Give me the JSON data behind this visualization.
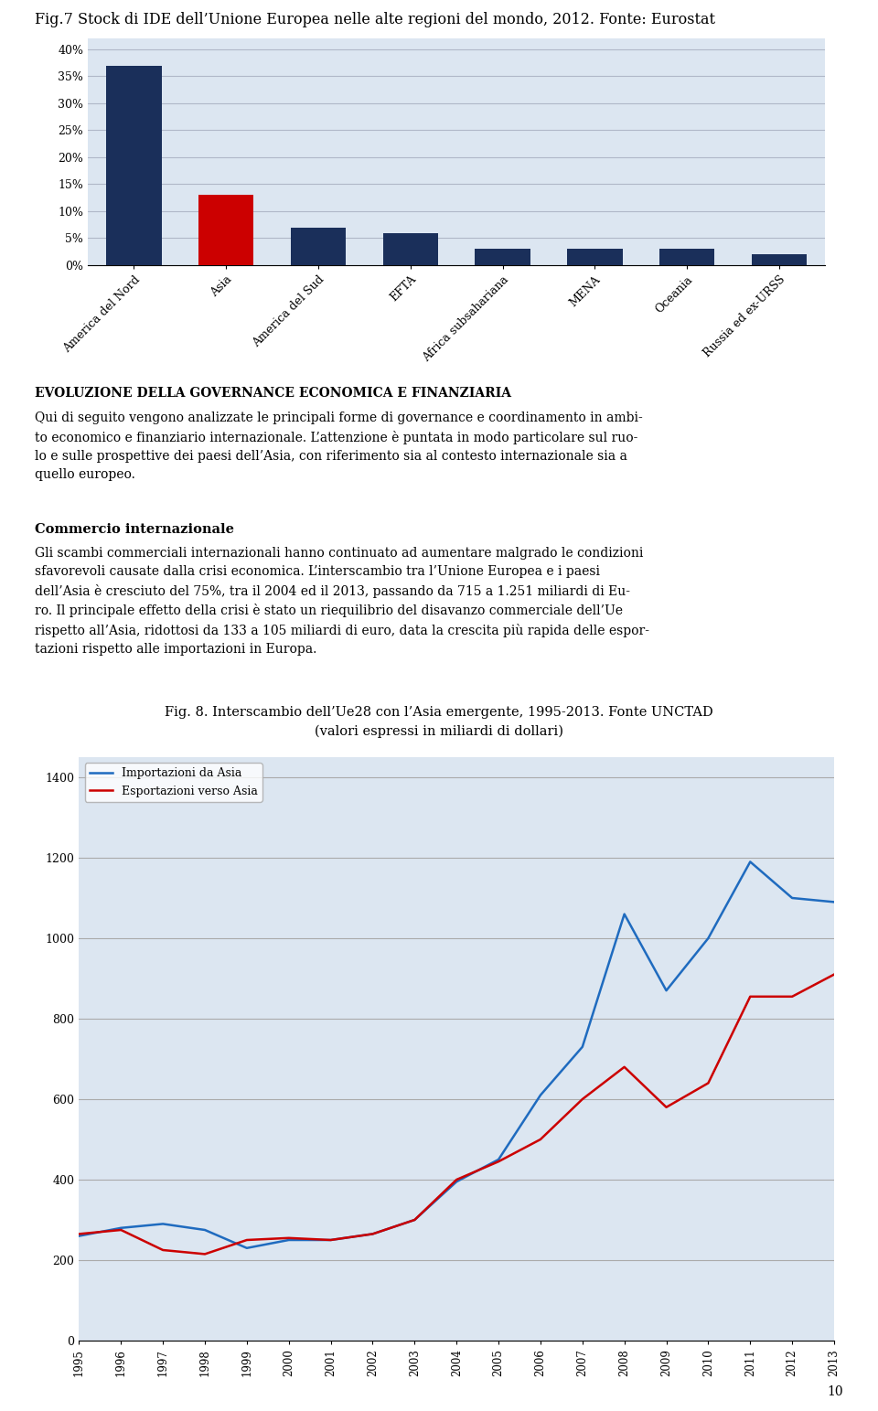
{
  "page_title": "Fig.7 Stock di IDE dell’Unione Europea nelle alte regioni del mondo, 2012. Fonte: Eurostat",
  "bar_categories": [
    "America del Nord",
    "Asia",
    "America del Sud",
    "EFTA",
    "Africa subsahariana",
    "MENA",
    "Oceania",
    "Russia ed ex-URSS"
  ],
  "bar_values": [
    0.37,
    0.13,
    0.07,
    0.06,
    0.03,
    0.03,
    0.03,
    0.02
  ],
  "bar_colors": [
    "#1a2f5a",
    "#cc0000",
    "#1a2f5a",
    "#1a2f5a",
    "#1a2f5a",
    "#1a2f5a",
    "#1a2f5a",
    "#1a2f5a"
  ],
  "bar_yticks": [
    0.0,
    0.05,
    0.1,
    0.15,
    0.2,
    0.25,
    0.3,
    0.35,
    0.4
  ],
  "bar_ytick_labels": [
    "0%",
    "5%",
    "10%",
    "15%",
    "20%",
    "25%",
    "30%",
    "35%",
    "40%"
  ],
  "bar_bg_color": "#dce6f1",
  "bar_grid_color": "#b0b8c8",
  "section_title": "Evoluzione della Governance Economica e Finanziaria",
  "para1": "Qui di seguito vengono analizzate le principali forme di governance e coordinamento in ambi-\nto economico e finanziario internazionale. L’attenzione è puntata in modo particolare sul ruo-\nlo e sulle prospettive dei paesi dell’Asia, con riferimento sia al contesto internazionale sia a\nquello europeo.",
  "subsection_title": "Commercio internazionale",
  "para2": "Gli scambi commerciali internazionali hanno continuato ad aumentare malgrado le condizioni\nsfavorevoli causate dalla crisi economica. L’interscambio tra l’Unione Europea e i paesi\ndell’Asia è cresciuto del 75%, tra il 2004 ed il 2013, passando da 715 a 1.251 miliardi di Eu-\nro. Il principale effetto della crisi è stato un riequilibrio del disavanzo commerciale dell’Ue\nrispetto all’Asia, ridottosi da 133 a 105 miliardi di euro, data la crescita più rapida delle espor-\ntazioni rispetto alle importazioni in Europa.",
  "fig8_title": "Fig. 8. Interscambio dell’Ue28 con l’Asia emergente, 1995-2013. Fonte UNCTAD\n(valori espressi in miliardi di dollari)",
  "line_years": [
    1995,
    1996,
    1997,
    1998,
    1999,
    2000,
    2001,
    2002,
    2003,
    2004,
    2005,
    2006,
    2007,
    2008,
    2009,
    2010,
    2011,
    2012,
    2013
  ],
  "importazioni": [
    260,
    280,
    290,
    275,
    230,
    250,
    250,
    265,
    300,
    395,
    450,
    610,
    730,
    1060,
    870,
    1000,
    1190,
    1100,
    1090
  ],
  "esportazioni": [
    265,
    275,
    225,
    215,
    250,
    255,
    250,
    265,
    300,
    400,
    445,
    500,
    600,
    680,
    580,
    640,
    855,
    855,
    910
  ],
  "import_color": "#1f6bbf",
  "export_color": "#cc0000",
  "line_bg_color": "#dce6f1",
  "line_yticks": [
    0,
    200,
    400,
    600,
    800,
    1000,
    1200,
    1400
  ],
  "legend_import": "Importazioni da Asia",
  "legend_export": "Esportazioni verso Asia",
  "page_number": "10"
}
